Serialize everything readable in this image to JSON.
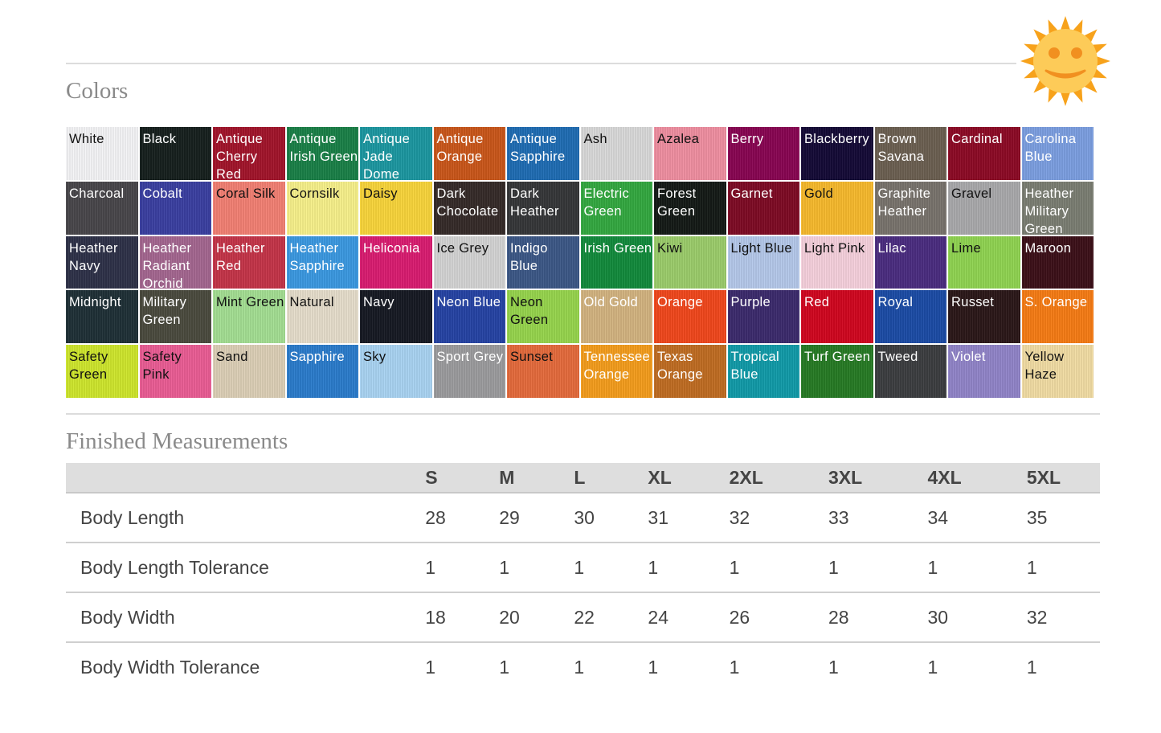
{
  "colors_section": {
    "title": "Colors",
    "swatches": [
      {
        "name": "White",
        "color": "#f4f4f6",
        "text": "light"
      },
      {
        "name": "Black",
        "color": "#16201e",
        "text": "dark"
      },
      {
        "name": "Antique Cherry Red",
        "color": "#a1142a",
        "text": "dark"
      },
      {
        "name": "Antique Irish Green",
        "color": "#1a8047",
        "text": "dark"
      },
      {
        "name": "Antique Jade Dome",
        "color": "#1c97a0",
        "text": "dark"
      },
      {
        "name": "Antique Orange",
        "color": "#c9561a",
        "text": "dark"
      },
      {
        "name": "Antique Sapphire",
        "color": "#1f6cb3",
        "text": "dark"
      },
      {
        "name": "Ash",
        "color": "#d9d9d9",
        "text": "light"
      },
      {
        "name": "Azalea",
        "color": "#ef8ea0",
        "text": "light"
      },
      {
        "name": "Berry",
        "color": "#880552",
        "text": "dark"
      },
      {
        "name": "Blackberry",
        "color": "#140a36",
        "text": "dark"
      },
      {
        "name": "Brown Savana",
        "color": "#6b5f51",
        "text": "dark"
      },
      {
        "name": "Cardinal",
        "color": "#8c0a25",
        "text": "dark"
      },
      {
        "name": "Carolina Blue",
        "color": "#7b9ee0",
        "text": "dark"
      },
      {
        "name": "Charcoal",
        "color": "#48464a",
        "text": "dark"
      },
      {
        "name": "Cobalt",
        "color": "#3a3fa0",
        "text": "dark"
      },
      {
        "name": "Coral Silk",
        "color": "#f27f73",
        "text": "light"
      },
      {
        "name": "Cornsilk",
        "color": "#f7f08a",
        "text": "light"
      },
      {
        "name": "Daisy",
        "color": "#f8d43a",
        "text": "light"
      },
      {
        "name": "Dark Chocolate",
        "color": "#352a28",
        "text": "dark"
      },
      {
        "name": "Dark Heather",
        "color": "#353638",
        "text": "dark"
      },
      {
        "name": "Electric Green",
        "color": "#33a840",
        "text": "dark"
      },
      {
        "name": "Forest Green",
        "color": "#141a16",
        "text": "dark"
      },
      {
        "name": "Garnet",
        "color": "#7d0b24",
        "text": "dark"
      },
      {
        "name": "Gold",
        "color": "#f6b92c",
        "text": "light"
      },
      {
        "name": "Graphite Heather",
        "color": "#78736c",
        "text": "dark"
      },
      {
        "name": "Gravel",
        "color": "#a9a9ab",
        "text": "light"
      },
      {
        "name": "Heather Military Green",
        "color": "#7a7d72",
        "text": "dark"
      },
      {
        "name": "Heather Navy",
        "color": "#2e3148",
        "text": "dark"
      },
      {
        "name": "Heather Radiant Orchid",
        "color": "#a3668f",
        "text": "dark"
      },
      {
        "name": "Heather Red",
        "color": "#c43448",
        "text": "dark"
      },
      {
        "name": "Heather Sapphire",
        "color": "#3a98e0",
        "text": "dark"
      },
      {
        "name": "Heliconia",
        "color": "#d91c70",
        "text": "dark"
      },
      {
        "name": "Ice Grey",
        "color": "#d3d3d3",
        "text": "light"
      },
      {
        "name": "Indigo Blue",
        "color": "#3c5786",
        "text": "dark"
      },
      {
        "name": "Irish Green",
        "color": "#128a3c",
        "text": "dark"
      },
      {
        "name": "Kiwi",
        "color": "#9bcc6a",
        "text": "light"
      },
      {
        "name": "Light Blue",
        "color": "#b4c8ea",
        "text": "light"
      },
      {
        "name": "Light Pink",
        "color": "#f5d0dc",
        "text": "light"
      },
      {
        "name": "Lilac",
        "color": "#4a2c80",
        "text": "dark"
      },
      {
        "name": "Lime",
        "color": "#8fd351",
        "text": "light"
      },
      {
        "name": "Maroon",
        "color": "#3c1018",
        "text": "dark"
      },
      {
        "name": "Midnight",
        "color": "#1f3036",
        "text": "dark"
      },
      {
        "name": "Military Green",
        "color": "#4a4a3e",
        "text": "dark"
      },
      {
        "name": "Mint Green",
        "color": "#a3de92",
        "text": "light"
      },
      {
        "name": "Natural",
        "color": "#e6ddcb",
        "text": "light"
      },
      {
        "name": "Navy",
        "color": "#161923",
        "text": "dark"
      },
      {
        "name": "Neon Blue",
        "color": "#2543a3",
        "text": "dark"
      },
      {
        "name": "Neon Green",
        "color": "#96d44c",
        "text": "light"
      },
      {
        "name": "Old Gold",
        "color": "#d2b380",
        "text": "dark"
      },
      {
        "name": "Orange",
        "color": "#f0471c",
        "text": "dark"
      },
      {
        "name": "Purple",
        "color": "#3b2a6c",
        "text": "dark"
      },
      {
        "name": "Red",
        "color": "#d0061f",
        "text": "dark"
      },
      {
        "name": "Royal",
        "color": "#1b4ba5",
        "text": "dark"
      },
      {
        "name": "Russet",
        "color": "#2b1718",
        "text": "dark"
      },
      {
        "name": "S. Orange",
        "color": "#f57b14",
        "text": "dark"
      },
      {
        "name": "Safety Green",
        "color": "#cee62c",
        "text": "light"
      },
      {
        "name": "Safety Pink",
        "color": "#ea5c94",
        "text": "light"
      },
      {
        "name": "Sand",
        "color": "#dccfb6",
        "text": "light"
      },
      {
        "name": "Sapphire",
        "color": "#2a7bcb",
        "text": "dark"
      },
      {
        "name": "Sky",
        "color": "#a9d3f2",
        "text": "light"
      },
      {
        "name": "Sport Grey",
        "color": "#9b9b9d",
        "text": "dark"
      },
      {
        "name": "Sunset",
        "color": "#e46a3c",
        "text": "light"
      },
      {
        "name": "Tennessee Orange",
        "color": "#f39c1c",
        "text": "dark"
      },
      {
        "name": "Texas Orange",
        "color": "#bf6c22",
        "text": "dark"
      },
      {
        "name": "Tropical Blue",
        "color": "#119aa8",
        "text": "dark"
      },
      {
        "name": "Turf Green",
        "color": "#267a24",
        "text": "dark"
      },
      {
        "name": "Tweed",
        "color": "#3c3d40",
        "text": "dark"
      },
      {
        "name": "Violet",
        "color": "#9084c8",
        "text": "dark"
      },
      {
        "name": "Yellow Haze",
        "color": "#f1dca3",
        "text": "light"
      }
    ]
  },
  "measurements_section": {
    "title": "Finished Measurements",
    "sizes": [
      "S",
      "M",
      "L",
      "XL",
      "2XL",
      "3XL",
      "4XL",
      "5XL"
    ],
    "rows": [
      {
        "label": "Body Length",
        "values": [
          "28",
          "29",
          "30",
          "31",
          "32",
          "33",
          "34",
          "35"
        ]
      },
      {
        "label": "Body Length Tolerance",
        "values": [
          "1",
          "1",
          "1",
          "1",
          "1",
          "1",
          "1",
          "1"
        ]
      },
      {
        "label": "Body Width",
        "values": [
          "18",
          "20",
          "22",
          "24",
          "26",
          "28",
          "30",
          "32"
        ]
      },
      {
        "label": "Body Width Tolerance",
        "values": [
          "1",
          "1",
          "1",
          "1",
          "1",
          "1",
          "1",
          "1"
        ]
      }
    ]
  },
  "icons": {
    "sun": "smiling-sun-icon",
    "sun_color": "#f7a21b",
    "sun_face_color": "#fdcb58"
  }
}
